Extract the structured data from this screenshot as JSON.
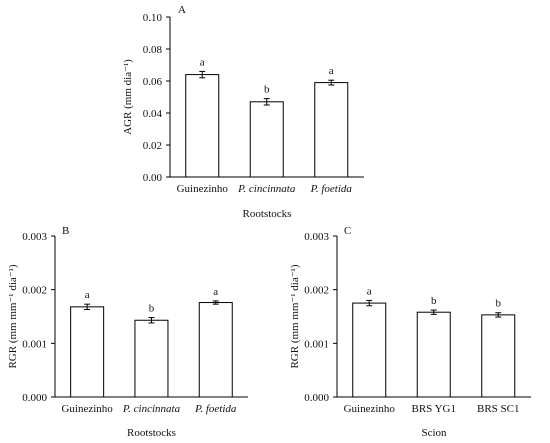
{
  "chart_data": [
    {
      "type": "bar",
      "panel_label": "A",
      "categories": [
        "Guinezinho",
        "P. cincinnata",
        "P. foetida"
      ],
      "italic_categories": [
        false,
        true,
        true
      ],
      "values": [
        0.064,
        0.047,
        0.059
      ],
      "errors": [
        0.002,
        0.002,
        0.0015
      ],
      "significance": [
        "a",
        "b",
        "a"
      ],
      "ylabel": "AGR (mm dia⁻¹)",
      "xlabel": "Rootstocks",
      "ylim": [
        0,
        0.1
      ],
      "yticks": [
        "0.00",
        "0.02",
        "0.04",
        "0.06",
        "0.08",
        "0.10"
      ],
      "bar_color": "#ffffff"
    },
    {
      "type": "bar",
      "panel_label": "B",
      "categories": [
        "Guinezinho",
        "P. cincinnata",
        "P. foetida"
      ],
      "italic_categories": [
        false,
        true,
        true
      ],
      "values": [
        0.00168,
        0.00143,
        0.00176
      ],
      "errors": [
        5e-05,
        5e-05,
        3e-05
      ],
      "significance": [
        "a",
        "b",
        "a"
      ],
      "ylabel": "RGR (mm mm⁻¹ dia⁻¹)",
      "xlabel": "Rootstocks",
      "ylim": [
        0,
        0.003
      ],
      "yticks": [
        "0.000",
        "0.001",
        "0.002",
        "0.003"
      ],
      "bar_color": "#ffffff"
    },
    {
      "type": "bar",
      "panel_label": "C",
      "categories": [
        "Guinezinho",
        "BRS YG1",
        "BRS SC1"
      ],
      "italic_categories": [
        false,
        false,
        false
      ],
      "values": [
        0.00175,
        0.00158,
        0.00153
      ],
      "errors": [
        5e-05,
        4e-05,
        4e-05
      ],
      "significance": [
        "a",
        "b",
        "b"
      ],
      "ylabel": "RGR (mm mm⁻¹ dia⁻¹)",
      "xlabel": "Scion",
      "ylim": [
        0,
        0.003
      ],
      "yticks": [
        "0.000",
        "0.001",
        "0.002",
        "0.003"
      ],
      "bar_color": "#ffffff"
    }
  ]
}
